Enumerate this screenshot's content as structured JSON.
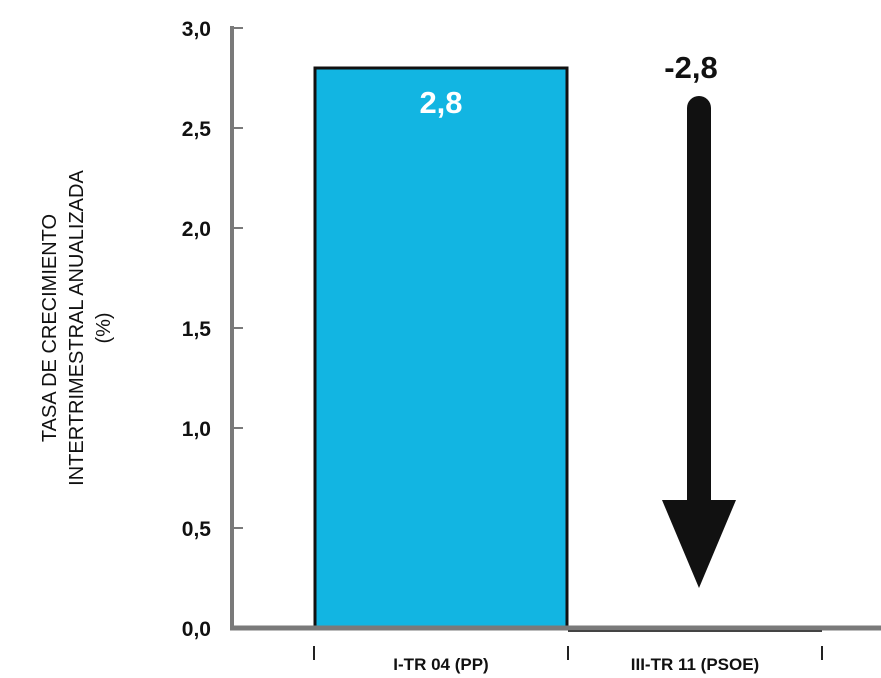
{
  "chart_data": {
    "type": "bar",
    "categories": [
      "I-TR 04 (PP)",
      "III-TR 11 (PSOE)"
    ],
    "values": [
      2.8,
      0.0
    ],
    "value_labels": [
      "2,8",
      ""
    ],
    "ylabel_lines": [
      "TASA DE CRECIMIENTO",
      "INTERTRIMESTRAL ANUALIZADA",
      "(%)"
    ],
    "ylim": [
      0,
      3.0
    ],
    "yticks": [
      {
        "value": 0.0,
        "label": "0,0"
      },
      {
        "value": 0.5,
        "label": "0,5"
      },
      {
        "value": 1.0,
        "label": "1,0"
      },
      {
        "value": 1.5,
        "label": "1,5"
      },
      {
        "value": 2.0,
        "label": "2,0"
      },
      {
        "value": 2.5,
        "label": "2,5"
      },
      {
        "value": 3.0,
        "label": "3,0"
      }
    ],
    "annotation": {
      "label": "-2,8",
      "from_value": 2.6,
      "to_value": 0.2,
      "category_index": 1
    },
    "grid": false,
    "colors": {
      "bar": "#12b5e2",
      "bar_stroke": "#111111",
      "bar_label": "#ffffff",
      "axis": "#7a7a7a",
      "arrow": "#111111"
    }
  }
}
